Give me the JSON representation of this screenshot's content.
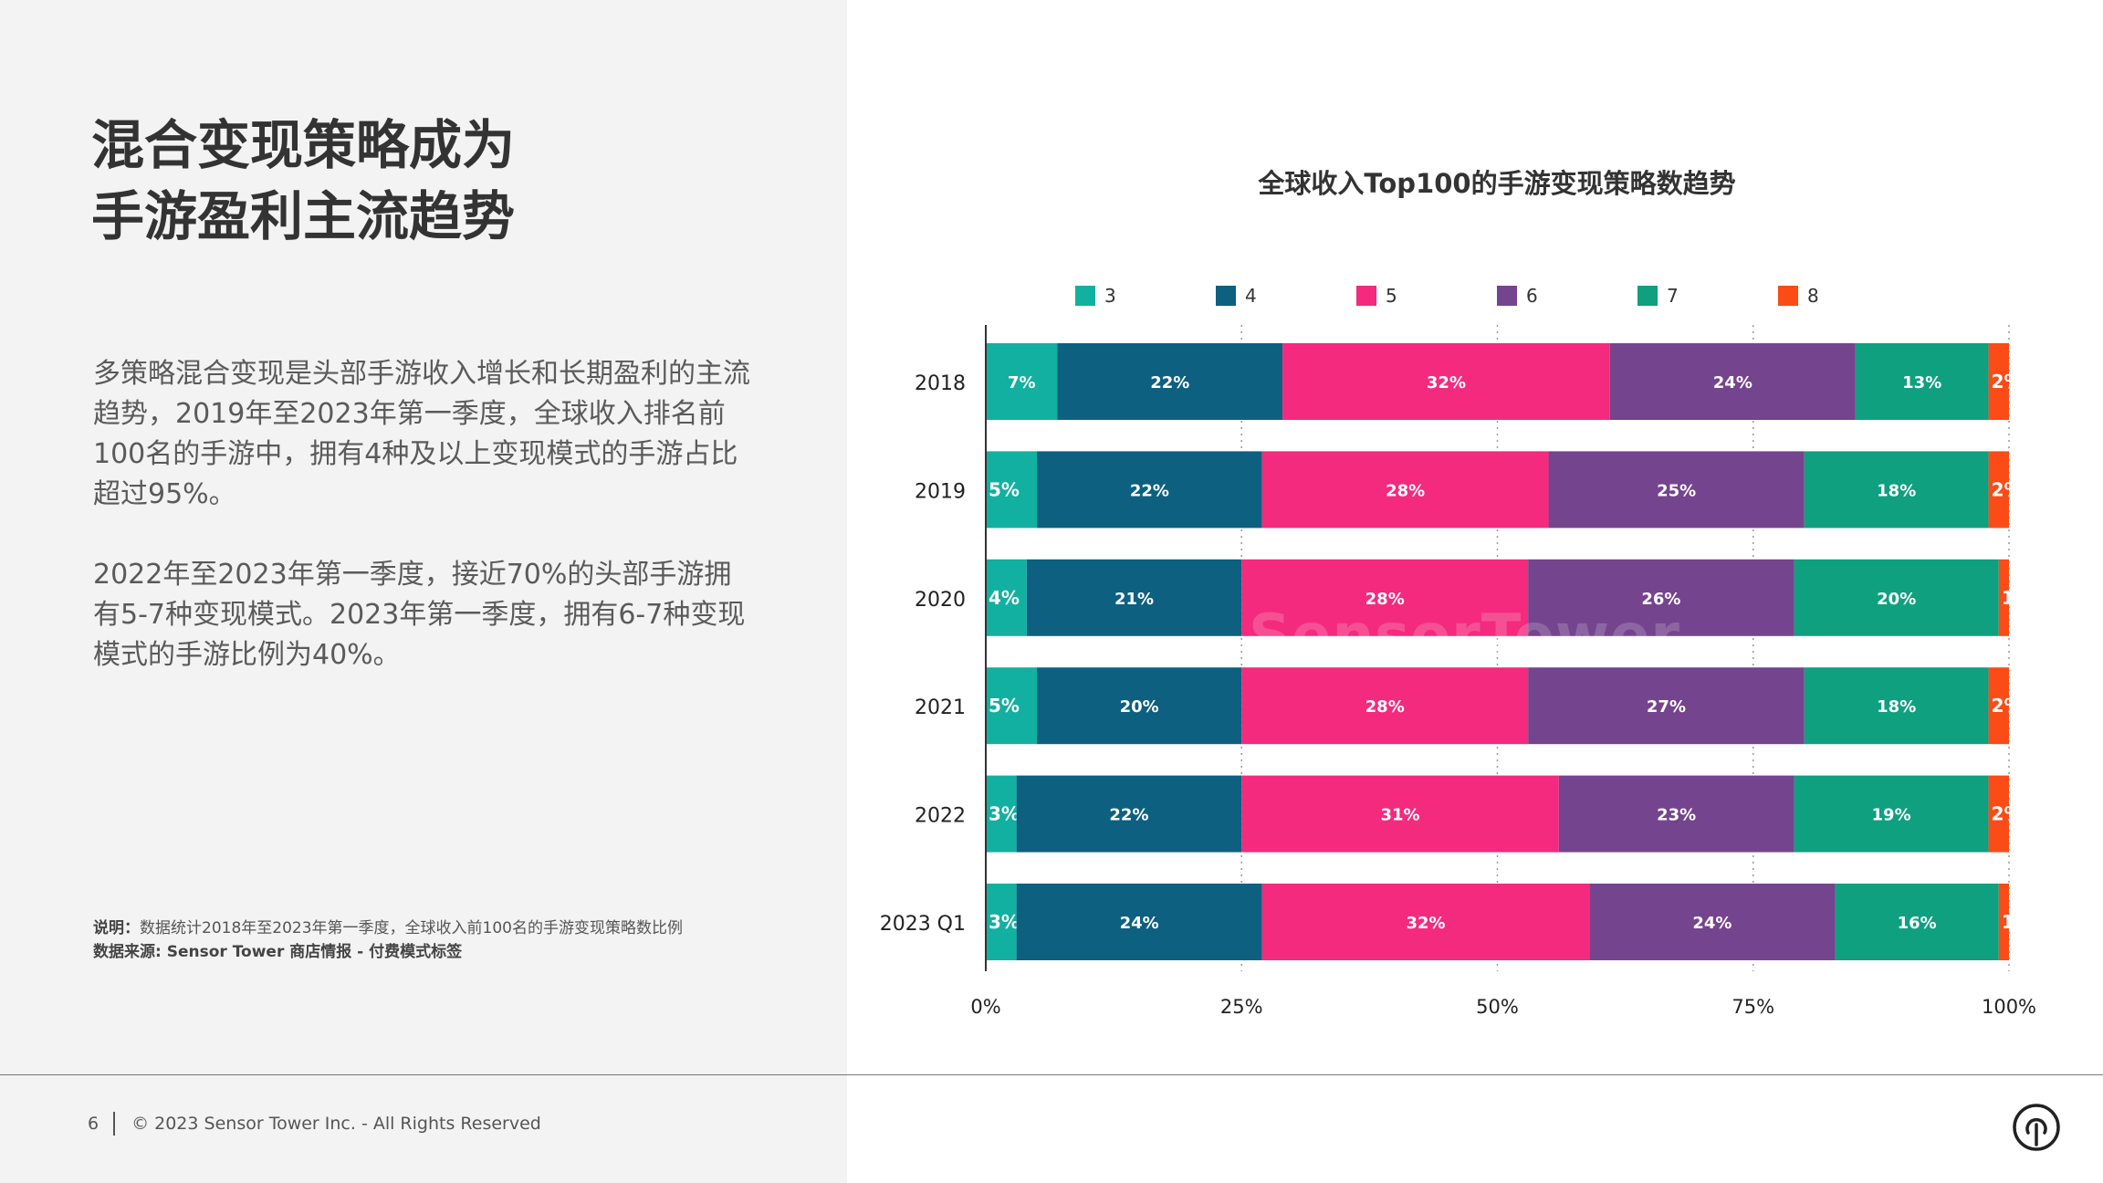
{
  "headline": {
    "line1": "混合变现策略成为",
    "line2": "手游盈利主流趋势"
  },
  "paragraphs": {
    "p1": "多策略混合变现是头部手游收入增长和长期盈利的主流趋势，2019年至2023年第一季度，全球收入排名前100名的手游中，拥有4种及以上变现模式的手游占比超过95%。",
    "p2": "2022年至2023年第一季度，接近70%的头部手游拥有5-7种变现模式。2023年第一季度，拥有6-7种变现模式的手游比例为40%。"
  },
  "notes": {
    "note_label": "说明：",
    "note_text": "数据统计2018年至2023年第一季度，全球收入前100名的手游变现策略数比例",
    "source_label": "数据来源: Sensor Tower 商店情报 - 付费模式标签"
  },
  "footer": {
    "page_number": "6",
    "copyright": "© 2023 Sensor Tower Inc. - All Rights Reserved"
  },
  "watermark": "SensorTower",
  "brand_icon": "sensor-tower-logo-icon",
  "chart_data": {
    "type": "bar",
    "orientation": "horizontal",
    "stacked": true,
    "title": "全球收入Top100的手游变现策略数趋势",
    "categories": [
      "2018",
      "2019",
      "2020",
      "2021",
      "2022",
      "2023 Q1"
    ],
    "series": [
      {
        "name": "3",
        "color": "#12b0a0",
        "values": [
          7,
          5,
          4,
          5,
          3,
          3
        ]
      },
      {
        "name": "4",
        "color": "#0d6080",
        "values": [
          22,
          22,
          21,
          20,
          22,
          24
        ]
      },
      {
        "name": "5",
        "color": "#f42a7e",
        "values": [
          32,
          28,
          28,
          28,
          31,
          32
        ]
      },
      {
        "name": "6",
        "color": "#75448e",
        "values": [
          24,
          25,
          26,
          27,
          23,
          24
        ]
      },
      {
        "name": "7",
        "color": "#0fa080",
        "values": [
          13,
          18,
          20,
          18,
          19,
          16
        ]
      },
      {
        "name": "8",
        "color": "#fb4b16",
        "values": [
          2,
          2,
          1,
          2,
          2,
          1
        ]
      }
    ],
    "labels": [
      [
        "7%",
        "5%",
        "4%",
        "5%",
        "3%",
        "3%"
      ],
      [
        "22%",
        "22%",
        "21%",
        "20%",
        "22%",
        "24%"
      ],
      [
        "32%",
        "28%",
        "28%",
        "28%",
        "31%",
        "32%"
      ],
      [
        "24%",
        "25%",
        "26%",
        "27%",
        "23%",
        "24%"
      ],
      [
        "13%",
        "18%",
        "20%",
        "18%",
        "19%",
        "16%"
      ],
      [
        "2%",
        "2%",
        "1",
        "2%",
        "2%",
        "1"
      ]
    ],
    "xlim": [
      0,
      100
    ],
    "xticks": [
      "0%",
      "25%",
      "50%",
      "75%",
      "100%"
    ],
    "grid": true,
    "legend": "top"
  }
}
